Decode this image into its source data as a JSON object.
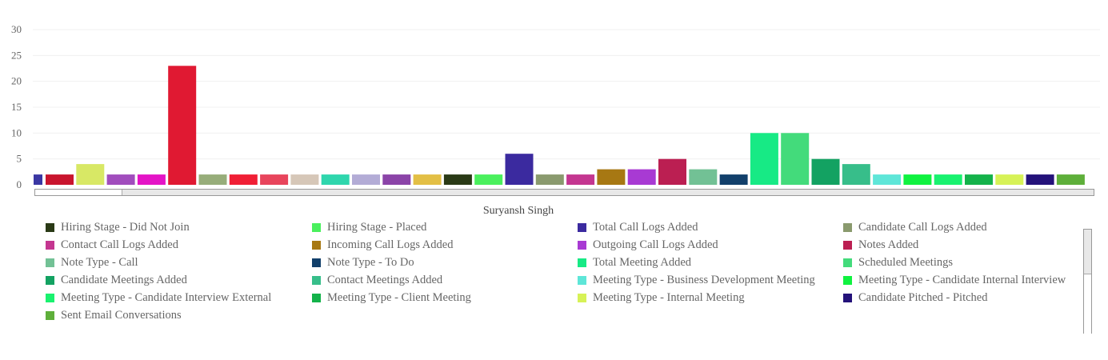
{
  "chart_data": {
    "type": "bar",
    "xlabel": "Suryansh Singh",
    "ylim": [
      0,
      30
    ],
    "yticks": [
      0,
      5,
      10,
      15,
      20,
      25,
      30
    ],
    "grid": true,
    "series": [
      {
        "color": "#3a37a3",
        "value": 2
      },
      {
        "color": "#c9152e",
        "value": 2
      },
      {
        "color": "#d8e865",
        "value": 4
      },
      {
        "color": "#a14dbd",
        "value": 2
      },
      {
        "color": "#e414c6",
        "value": 2
      },
      {
        "color": "#e01932",
        "value": 23
      },
      {
        "color": "#97ad7a",
        "value": 2
      },
      {
        "color": "#f01f35",
        "value": 2
      },
      {
        "color": "#e8455c",
        "value": 2
      },
      {
        "color": "#d6c7b8",
        "value": 2
      },
      {
        "color": "#2fd6ad",
        "value": 2
      },
      {
        "color": "#b3acd6",
        "value": 2
      },
      {
        "color": "#8b44a8",
        "value": 2
      },
      {
        "color": "#e3bf45",
        "value": 2
      },
      {
        "color": "#2a3a16",
        "name": "Hiring Stage - Did Not Join",
        "value": 2
      },
      {
        "color": "#4af05d",
        "name": "Hiring Stage - Placed",
        "value": 2
      },
      {
        "color": "#3b2a9f",
        "name": "Total Call Logs Added",
        "value": 6
      },
      {
        "color": "#8a9a6e",
        "name": "Candidate Call Logs Added",
        "value": 2
      },
      {
        "color": "#c43690",
        "name": "Contact Call Logs Added",
        "value": 2
      },
      {
        "color": "#a77813",
        "name": "Incoming Call Logs Added",
        "value": 3
      },
      {
        "color": "#a83ad3",
        "name": "Outgoing Call Logs Added",
        "value": 3
      },
      {
        "color": "#bb1f52",
        "name": "Notes Added",
        "value": 5
      },
      {
        "color": "#72c195",
        "name": "Note Type - Call",
        "value": 3
      },
      {
        "color": "#12406b",
        "name": "Note Type - To Do",
        "value": 2
      },
      {
        "color": "#17ea85",
        "name": "Total Meeting Added",
        "value": 10
      },
      {
        "color": "#43db7b",
        "name": "Scheduled Meetings",
        "value": 10
      },
      {
        "color": "#13a262",
        "name": "Candidate Meetings Added",
        "value": 5
      },
      {
        "color": "#37be8a",
        "name": "Contact Meetings Added",
        "value": 4
      },
      {
        "color": "#5ee6d8",
        "name": "Meeting Type - Business Development Meeting",
        "value": 2
      },
      {
        "color": "#10f240",
        "name": "Meeting Type - Candidate Internal Interview",
        "value": 2
      },
      {
        "color": "#19f26f",
        "name": "Meeting Type - Candidate Interview External",
        "value": 2
      },
      {
        "color": "#14b24a",
        "name": "Meeting Type - Client Meeting",
        "value": 2
      },
      {
        "color": "#d7f257",
        "name": "Meeting Type - Internal Meeting",
        "value": 2
      },
      {
        "color": "#24127a",
        "name": "Candidate Pitched - Pitched",
        "value": 2
      },
      {
        "color": "#5eaf3a",
        "name": "Sent Email Conversations",
        "value": 2
      }
    ]
  },
  "legend": [
    {
      "label": "Hiring Stage - Did Not Join",
      "color": "#2a3a16"
    },
    {
      "label": "Hiring Stage - Placed",
      "color": "#4af05d"
    },
    {
      "label": "Total Call Logs Added",
      "color": "#3b2a9f"
    },
    {
      "label": "Candidate Call Logs Added",
      "color": "#8a9a6e"
    },
    {
      "label": "Contact Call Logs Added",
      "color": "#c43690"
    },
    {
      "label": "Incoming Call Logs Added",
      "color": "#a77813"
    },
    {
      "label": "Outgoing Call Logs Added",
      "color": "#a83ad3"
    },
    {
      "label": "Notes Added",
      "color": "#bb1f52"
    },
    {
      "label": "Note Type - Call",
      "color": "#72c195"
    },
    {
      "label": "Note Type - To Do",
      "color": "#12406b"
    },
    {
      "label": "Total Meeting Added",
      "color": "#17ea85"
    },
    {
      "label": "Scheduled Meetings",
      "color": "#43db7b"
    },
    {
      "label": "Candidate Meetings Added",
      "color": "#13a262"
    },
    {
      "label": "Contact Meetings Added",
      "color": "#37be8a"
    },
    {
      "label": "Meeting Type - Business Development Meeting",
      "color": "#5ee6d8"
    },
    {
      "label": "Meeting Type - Candidate Internal Interview",
      "color": "#10f240"
    },
    {
      "label": "Meeting Type - Candidate Interview External",
      "color": "#19f26f"
    },
    {
      "label": "Meeting Type - Client Meeting",
      "color": "#14b24a"
    },
    {
      "label": "Meeting Type - Internal Meeting",
      "color": "#d7f257"
    },
    {
      "label": "Candidate Pitched - Pitched",
      "color": "#24127a"
    },
    {
      "label": "Sent Email Conversations",
      "color": "#5eaf3a"
    }
  ]
}
